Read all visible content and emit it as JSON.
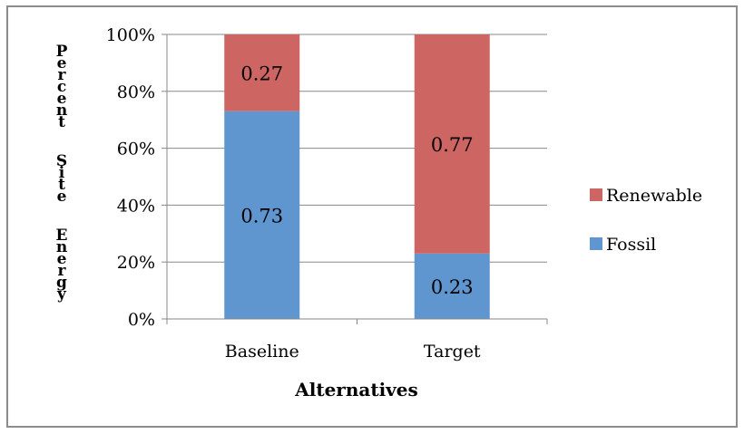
{
  "chart_data": {
    "type": "bar",
    "stacked": true,
    "percent_scale": true,
    "categories": [
      "Baseline",
      "Target"
    ],
    "series": [
      {
        "name": "Fossil",
        "values": [
          0.73,
          0.23
        ],
        "color": "#6096d0",
        "labels": [
          "0.73",
          "0.23"
        ]
      },
      {
        "name": "Renewable",
        "values": [
          0.27,
          0.77
        ],
        "color": "#cd6562",
        "labels": [
          "0.27",
          "0.77"
        ]
      }
    ],
    "title": "",
    "xlabel": "Alternatives",
    "ylabel": "Percent Site Energy",
    "ylim": [
      0,
      1
    ],
    "yticks": [
      {
        "value": 0,
        "label": "0%"
      },
      {
        "value": 0.2,
        "label": "20%"
      },
      {
        "value": 0.4,
        "label": "40%"
      },
      {
        "value": 0.6,
        "label": "60%"
      },
      {
        "value": 0.8,
        "label": "80%"
      },
      {
        "value": 1.0,
        "label": "100%"
      }
    ],
    "legend": {
      "position": "right",
      "order": [
        "Renewable",
        "Fossil"
      ]
    },
    "grid": true,
    "gridColor": "#888888"
  }
}
